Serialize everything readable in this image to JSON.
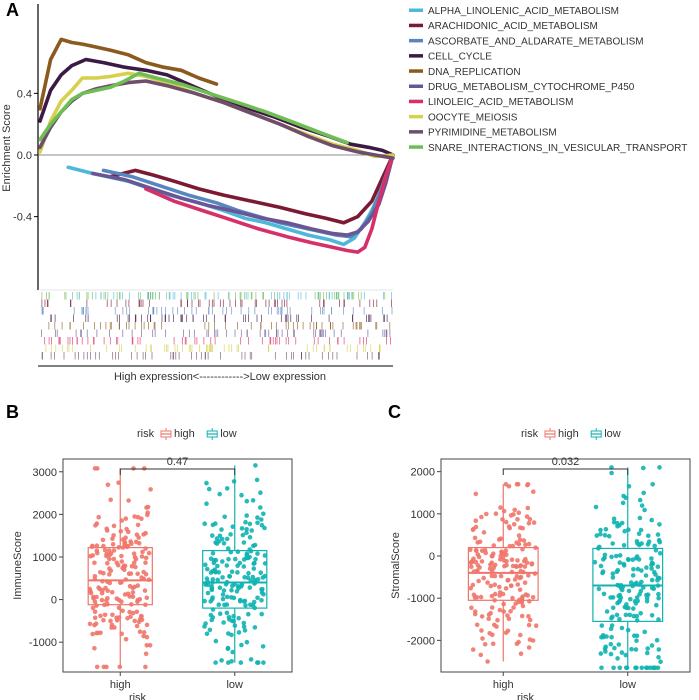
{
  "chart_data": [
    {
      "id": "A",
      "panel_label": "A",
      "type": "line",
      "title": "",
      "ylabel": "Enrichment Score",
      "xlabel": "High expression<------------>Low expression",
      "ylim": [
        -0.78,
        0.98
      ],
      "yticks": [
        0.4,
        0.0,
        -0.4
      ],
      "ytick_labels": [
        "0.4",
        "0.0",
        "-0.4"
      ],
      "legend_position": "top-right",
      "series": [
        {
          "name": "ALPHA_LINOLENIC_ACID_METABOLISM",
          "color": "#4db8d9",
          "x": [
            0.08,
            0.15,
            0.25,
            0.35,
            0.45,
            0.52,
            0.58,
            0.64,
            0.7,
            0.76,
            0.82,
            0.86,
            0.89,
            0.92,
            0.94,
            0.96,
            0.98,
            1.0
          ],
          "y": [
            -0.08,
            -0.12,
            -0.17,
            -0.25,
            -0.31,
            -0.36,
            -0.41,
            -0.44,
            -0.48,
            -0.52,
            -0.55,
            -0.58,
            -0.54,
            -0.44,
            -0.36,
            -0.26,
            -0.12,
            0.0
          ]
        },
        {
          "name": "ARACHIDONIC_ACID_METABOLISM",
          "color": "#7a1b33",
          "x": [
            0.2,
            0.27,
            0.32,
            0.38,
            0.45,
            0.52,
            0.6,
            0.68,
            0.75,
            0.81,
            0.86,
            0.9,
            0.94,
            0.97,
            1.0
          ],
          "y": [
            -0.14,
            -0.1,
            -0.13,
            -0.17,
            -0.22,
            -0.26,
            -0.3,
            -0.34,
            -0.38,
            -0.41,
            -0.44,
            -0.4,
            -0.3,
            -0.15,
            0.0
          ]
        },
        {
          "name": "ASCORBATE_AND_ALDARATE_METABOLISM",
          "color": "#5886c0",
          "x": [
            0.18,
            0.26,
            0.34,
            0.42,
            0.5,
            0.56,
            0.62,
            0.68,
            0.74,
            0.8,
            0.84,
            0.88,
            0.91,
            0.94,
            0.97,
            1.0
          ],
          "y": [
            -0.1,
            -0.14,
            -0.2,
            -0.26,
            -0.31,
            -0.36,
            -0.4,
            -0.44,
            -0.47,
            -0.5,
            -0.52,
            -0.53,
            -0.48,
            -0.38,
            -0.2,
            0.0
          ]
        },
        {
          "name": "CELL_CYCLE",
          "color": "#3d1a45",
          "x": [
            0.0,
            0.03,
            0.06,
            0.09,
            0.13,
            0.18,
            0.24,
            0.3,
            0.36,
            0.42,
            0.5,
            0.58,
            0.66,
            0.74,
            0.82,
            0.88,
            0.93,
            0.97,
            1.0
          ],
          "y": [
            0.22,
            0.42,
            0.52,
            0.58,
            0.62,
            0.6,
            0.57,
            0.55,
            0.52,
            0.46,
            0.38,
            0.31,
            0.25,
            0.18,
            0.12,
            0.07,
            0.05,
            0.03,
            0.0
          ]
        },
        {
          "name": "DNA_REPLICATION",
          "color": "#8b5a1e",
          "x": [
            0.0,
            0.03,
            0.06,
            0.09,
            0.12,
            0.16,
            0.2,
            0.25,
            0.3,
            0.35,
            0.4,
            0.45,
            0.5
          ],
          "y": [
            0.3,
            0.62,
            0.75,
            0.73,
            0.72,
            0.7,
            0.68,
            0.65,
            0.6,
            0.57,
            0.55,
            0.5,
            0.46
          ]
        },
        {
          "name": "DRUG_METABOLISM_CYTOCHROME_P450",
          "color": "#6a5694",
          "x": [
            0.15,
            0.24,
            0.32,
            0.4,
            0.48,
            0.56,
            0.63,
            0.7,
            0.77,
            0.83,
            0.87,
            0.9,
            0.93,
            0.96,
            0.98,
            1.0
          ],
          "y": [
            -0.12,
            -0.16,
            -0.22,
            -0.28,
            -0.33,
            -0.37,
            -0.41,
            -0.44,
            -0.48,
            -0.51,
            -0.52,
            -0.5,
            -0.43,
            -0.32,
            -0.18,
            0.0
          ]
        },
        {
          "name": "LINOLEIC_ACID_METABOLISM",
          "color": "#d62f6a",
          "x": [
            0.3,
            0.38,
            0.46,
            0.54,
            0.62,
            0.7,
            0.77,
            0.83,
            0.87,
            0.9,
            0.92,
            0.94,
            0.96,
            0.98,
            1.0
          ],
          "y": [
            -0.22,
            -0.3,
            -0.36,
            -0.42,
            -0.48,
            -0.53,
            -0.57,
            -0.6,
            -0.62,
            -0.63,
            -0.6,
            -0.48,
            -0.3,
            -0.14,
            0.0
          ]
        },
        {
          "name": "OOCYTE_MEIOSIS",
          "color": "#d6d04c",
          "x": [
            0.0,
            0.03,
            0.06,
            0.09,
            0.12,
            0.16,
            0.2,
            0.25,
            0.3,
            0.36,
            0.44,
            0.52,
            0.6,
            0.68,
            0.76,
            0.83,
            0.9,
            0.95,
            1.0
          ],
          "y": [
            0.02,
            0.22,
            0.35,
            0.42,
            0.5,
            0.5,
            0.51,
            0.53,
            0.51,
            0.47,
            0.4,
            0.34,
            0.27,
            0.2,
            0.13,
            0.07,
            0.03,
            -0.01,
            0.0
          ]
        },
        {
          "name": "PYRIMIDINE_METABOLISM",
          "color": "#704d6b",
          "x": [
            0.0,
            0.03,
            0.06,
            0.09,
            0.12,
            0.16,
            0.2,
            0.25,
            0.3,
            0.36,
            0.44,
            0.52,
            0.6,
            0.68,
            0.76,
            0.83,
            0.9,
            0.95,
            1.0
          ],
          "y": [
            0.05,
            0.18,
            0.28,
            0.35,
            0.4,
            0.43,
            0.45,
            0.47,
            0.48,
            0.45,
            0.4,
            0.34,
            0.27,
            0.2,
            0.12,
            0.06,
            0.02,
            0.0,
            -0.02
          ]
        },
        {
          "name": "SNARE_INTERACTIONS_IN_VESICULAR_TRANSPORT",
          "color": "#6fbe55",
          "x": [
            0.0,
            0.03,
            0.06,
            0.09,
            0.12,
            0.16,
            0.2,
            0.24,
            0.28,
            0.33,
            0.4,
            0.48,
            0.56,
            0.64,
            0.72,
            0.8,
            0.87
          ],
          "y": [
            0.1,
            0.2,
            0.28,
            0.36,
            0.4,
            0.42,
            0.44,
            0.48,
            0.53,
            0.5,
            0.46,
            0.4,
            0.34,
            0.28,
            0.21,
            0.14,
            0.08
          ]
        }
      ]
    },
    {
      "id": "B",
      "panel_label": "B",
      "type": "box",
      "legend_title": "risk",
      "legend_labels": [
        "high",
        "low"
      ],
      "xlabel": "risk",
      "ylabel": "ImmuneScore",
      "categories": [
        "high",
        "low"
      ],
      "colors": [
        "#ef756a",
        "#10b3b1"
      ],
      "ylim": [
        -1700,
        3300
      ],
      "yticks": [
        -1000,
        0,
        1000,
        2000,
        3000
      ],
      "pvalue": "0.47",
      "boxes": [
        {
          "category": "high",
          "q1": -120,
          "median": 450,
          "q3": 1220,
          "whisker_low": -1580,
          "whisker_high": 3080
        },
        {
          "category": "low",
          "q1": -200,
          "median": 400,
          "q3": 1150,
          "whisker_low": -1480,
          "whisker_high": 3150
        }
      ]
    },
    {
      "id": "C",
      "panel_label": "C",
      "type": "box",
      "legend_title": "risk",
      "legend_labels": [
        "high",
        "low"
      ],
      "xlabel": "risk",
      "ylabel": "StromalScore",
      "categories": [
        "high",
        "low"
      ],
      "colors": [
        "#ef756a",
        "#10b3b1"
      ],
      "ylim": [
        -2750,
        2300
      ],
      "yticks": [
        -2000,
        -1000,
        0,
        1000,
        2000
      ],
      "pvalue": "0.032",
      "boxes": [
        {
          "category": "high",
          "q1": -1050,
          "median": -400,
          "q3": 200,
          "whisker_low": -2500,
          "whisker_high": 1700
        },
        {
          "category": "low",
          "q1": -1550,
          "median": -700,
          "q3": 180,
          "whisker_low": -2650,
          "whisker_high": 2100
        }
      ]
    }
  ]
}
